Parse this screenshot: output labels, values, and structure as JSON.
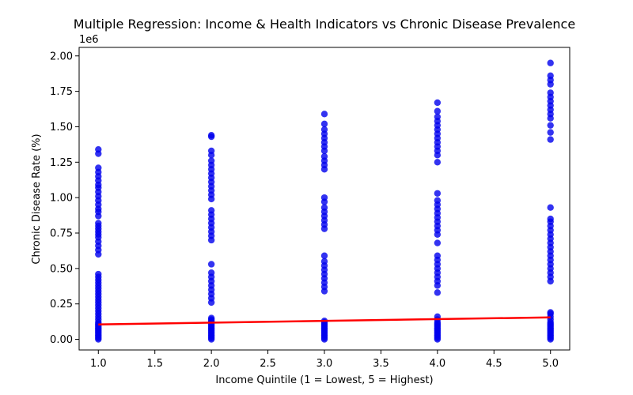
{
  "chart_data": {
    "type": "scatter",
    "title": "Multiple Regression: Income & Health Indicators vs Chronic Disease Prevalence",
    "xlabel": "Income Quintile (1 = Lowest, 5 = Highest)",
    "ylabel": "Chronic Disease Rate (%)",
    "y_offset_label": "1e6",
    "xlim": [
      0.83,
      5.17
    ],
    "ylim": [
      -75000,
      2060000
    ],
    "x_ticks": [
      1.0,
      1.5,
      2.0,
      2.5,
      3.0,
      3.5,
      4.0,
      4.5,
      5.0
    ],
    "x_tick_labels": [
      "1.0",
      "1.5",
      "2.0",
      "2.5",
      "3.0",
      "3.5",
      "4.0",
      "4.5",
      "5.0"
    ],
    "y_ticks": [
      0,
      250000,
      500000,
      750000,
      1000000,
      1250000,
      1500000,
      1750000,
      2000000
    ],
    "y_tick_labels": [
      "0.00",
      "0.25",
      "0.50",
      "0.75",
      "1.00",
      "1.25",
      "1.50",
      "1.75",
      "2.00"
    ],
    "grid": false,
    "point_color": "#0000ee",
    "line_color": "#ff0000",
    "points": [
      {
        "x": 1,
        "y": [
          0,
          10000,
          20000,
          30000,
          40000,
          50000,
          60000,
          70000,
          80000,
          90000,
          100000,
          110000,
          120000,
          140000,
          160000,
          180000,
          200000,
          220000,
          240000,
          260000,
          280000,
          300000,
          320000,
          340000,
          360000,
          380000,
          400000,
          420000,
          440000,
          460000,
          600000,
          630000,
          660000,
          690000,
          720000,
          740000,
          760000,
          780000,
          800000,
          820000,
          870000,
          900000,
          920000,
          950000,
          980000,
          1010000,
          1040000,
          1070000,
          1090000,
          1120000,
          1150000,
          1180000,
          1210000,
          1310000,
          1340000
        ]
      },
      {
        "x": 2,
        "y": [
          0,
          10000,
          20000,
          30000,
          40000,
          50000,
          60000,
          70000,
          80000,
          90000,
          100000,
          110000,
          120000,
          130000,
          140000,
          150000,
          260000,
          290000,
          320000,
          350000,
          380000,
          410000,
          440000,
          470000,
          530000,
          700000,
          730000,
          760000,
          790000,
          820000,
          850000,
          880000,
          910000,
          990000,
          1020000,
          1050000,
          1080000,
          1110000,
          1140000,
          1170000,
          1200000,
          1230000,
          1260000,
          1300000,
          1330000,
          1430000,
          1440000
        ]
      },
      {
        "x": 3,
        "y": [
          0,
          10000,
          20000,
          30000,
          40000,
          50000,
          60000,
          70000,
          80000,
          90000,
          100000,
          110000,
          120000,
          130000,
          340000,
          370000,
          400000,
          430000,
          460000,
          490000,
          520000,
          550000,
          590000,
          780000,
          810000,
          840000,
          870000,
          900000,
          930000,
          970000,
          1000000,
          1200000,
          1230000,
          1260000,
          1290000,
          1330000,
          1360000,
          1390000,
          1420000,
          1450000,
          1480000,
          1520000,
          1590000
        ]
      },
      {
        "x": 4,
        "y": [
          0,
          10000,
          20000,
          30000,
          40000,
          50000,
          60000,
          70000,
          80000,
          90000,
          100000,
          110000,
          120000,
          140000,
          160000,
          330000,
          380000,
          410000,
          440000,
          470000,
          500000,
          530000,
          560000,
          590000,
          680000,
          740000,
          770000,
          800000,
          830000,
          860000,
          890000,
          920000,
          950000,
          980000,
          1030000,
          1250000,
          1300000,
          1330000,
          1360000,
          1390000,
          1420000,
          1450000,
          1480000,
          1510000,
          1540000,
          1570000,
          1610000,
          1670000
        ]
      },
      {
        "x": 5,
        "y": [
          0,
          10000,
          20000,
          30000,
          40000,
          50000,
          60000,
          70000,
          80000,
          90000,
          100000,
          110000,
          120000,
          140000,
          160000,
          180000,
          190000,
          410000,
          440000,
          470000,
          500000,
          530000,
          560000,
          590000,
          620000,
          650000,
          680000,
          710000,
          740000,
          770000,
          800000,
          830000,
          850000,
          930000,
          1410000,
          1460000,
          1510000,
          1560000,
          1590000,
          1620000,
          1650000,
          1680000,
          1710000,
          1740000,
          1800000,
          1830000,
          1860000,
          1950000
        ]
      }
    ],
    "regression_line": {
      "x": [
        1.0,
        5.0
      ],
      "y": [
        105000,
        155000
      ]
    }
  }
}
